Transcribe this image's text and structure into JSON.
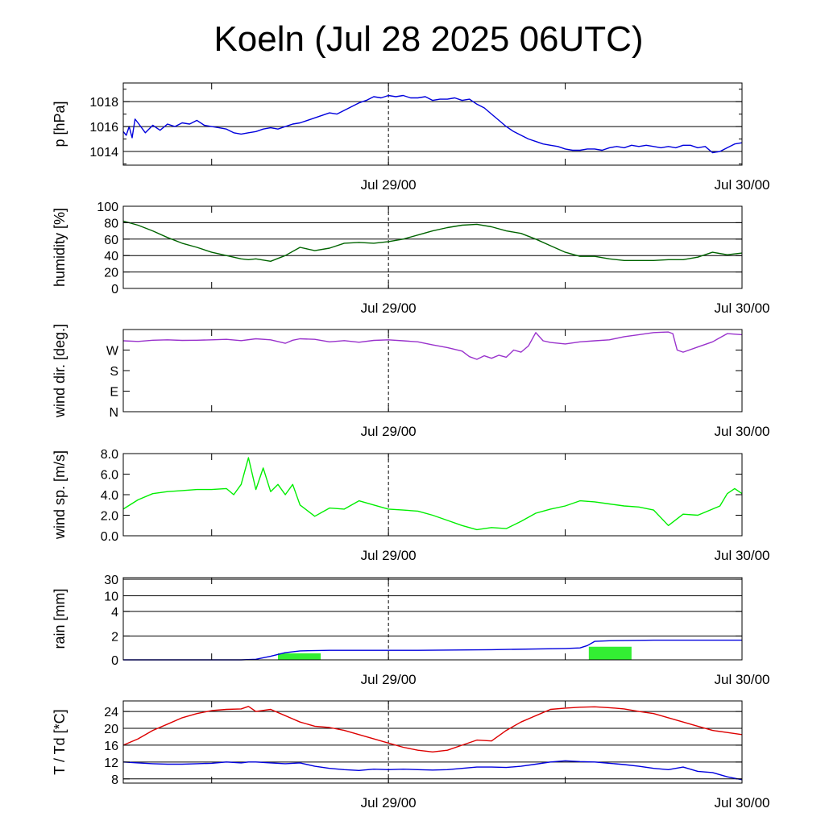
{
  "title": "Koeln (Jul 28 2025 06UTC)",
  "x_tick_labels": [
    "Jul 29/00",
    "Jul 30/00"
  ],
  "chart_data": [
    {
      "type": "line",
      "ylabel": "p [hPa]",
      "ylim": [
        1012.9,
        1019.5
      ],
      "yticks": [
        1014,
        1016,
        1018
      ],
      "ytick_labels": [
        "1014",
        "1016",
        "1018"
      ],
      "gridlines": [
        1014,
        1016,
        1018
      ],
      "x_hours": [
        0,
        0.2,
        0.4,
        0.6,
        0.8,
        1,
        1.5,
        2,
        2.5,
        3,
        3.5,
        4,
        4.5,
        5,
        5.5,
        6,
        6.5,
        7,
        7.5,
        8,
        8.5,
        9,
        9.5,
        10,
        10.5,
        11,
        11.5,
        12,
        12.5,
        13,
        13.5,
        14,
        14.5,
        15,
        15.5,
        16,
        16.5,
        17,
        17.5,
        18,
        18.5,
        19,
        19.5,
        20,
        20.5,
        21,
        21.5,
        22,
        22.5,
        23,
        23.5,
        24,
        24.5,
        25,
        25.5,
        26,
        26.5,
        27,
        27.5,
        28,
        28.5,
        29,
        29.5,
        30,
        30.5,
        31,
        31.5,
        32,
        32.5,
        33,
        33.5,
        34,
        34.5,
        35,
        35.5,
        36,
        36.5,
        37,
        37.5,
        38,
        38.5,
        39,
        39.5,
        40,
        40.5,
        41,
        41.5,
        42
      ],
      "series": [
        {
          "color": "#0000dd",
          "values": [
            1015.6,
            1015.3,
            1016.0,
            1015.1,
            1016.6,
            1016.3,
            1015.5,
            1016.1,
            1015.7,
            1016.2,
            1016.0,
            1016.3,
            1016.2,
            1016.5,
            1016.1,
            1016.0,
            1015.9,
            1015.8,
            1015.5,
            1015.4,
            1015.5,
            1015.6,
            1015.8,
            1015.9,
            1015.8,
            1016.0,
            1016.2,
            1016.3,
            1016.5,
            1016.7,
            1016.9,
            1017.1,
            1017.0,
            1017.3,
            1017.6,
            1017.9,
            1018.1,
            1018.4,
            1018.3,
            1018.5,
            1018.4,
            1018.5,
            1018.3,
            1018.3,
            1018.4,
            1018.1,
            1018.2,
            1018.2,
            1018.3,
            1018.1,
            1018.2,
            1017.8,
            1017.5,
            1017.0,
            1016.5,
            1016.0,
            1015.6,
            1015.3,
            1015.0,
            1014.8,
            1014.6,
            1014.5,
            1014.4,
            1014.2,
            1014.1,
            1014.1,
            1014.2,
            1014.2,
            1014.1,
            1014.3,
            1014.4,
            1014.3,
            1014.5,
            1014.4,
            1014.5,
            1014.4,
            1014.3,
            1014.4,
            1014.3,
            1014.5,
            1014.5,
            1014.3,
            1014.4,
            1013.9,
            1014.0,
            1014.3,
            1014.6,
            1014.7
          ]
        }
      ]
    },
    {
      "type": "line",
      "ylabel": "humidity [%]",
      "ylim": [
        0,
        100
      ],
      "yticks": [
        0,
        20,
        40,
        60,
        80,
        100
      ],
      "ytick_labels": [
        "0",
        "20",
        "40",
        "60",
        "80",
        "100"
      ],
      "gridlines": [
        20,
        40,
        60,
        80
      ],
      "x_hours": [
        0,
        1,
        2,
        3,
        4,
        5,
        6,
        7,
        8,
        8.5,
        9,
        10,
        11,
        12,
        13,
        14,
        15,
        16,
        17,
        18,
        19,
        20,
        21,
        22,
        23,
        24,
        25,
        26,
        27,
        28,
        29,
        30,
        31,
        32,
        33,
        34,
        35,
        36,
        37,
        38,
        39,
        40,
        41,
        42
      ],
      "series": [
        {
          "color": "#006400",
          "values": [
            82,
            77,
            70,
            62,
            55,
            50,
            44,
            40,
            36,
            35,
            36,
            33,
            40,
            50,
            46,
            49,
            55,
            56,
            55,
            57,
            60,
            65,
            70,
            74,
            77,
            78,
            75,
            70,
            67,
            60,
            52,
            44,
            39,
            39,
            36,
            34,
            34,
            34,
            35,
            35,
            38,
            44,
            41,
            43
          ]
        }
      ]
    },
    {
      "type": "line",
      "ylabel": "wind dir. [deg.]",
      "ylim": [
        0,
        400
      ],
      "yticks": [
        0,
        100,
        200,
        300
      ],
      "ytick_labels": [
        "N",
        "E",
        "S",
        "W"
      ],
      "gridlines": [],
      "x_hours": [
        0,
        1,
        2,
        3,
        4,
        5,
        6,
        7,
        8,
        9,
        10,
        11,
        11.5,
        12,
        13,
        14,
        15,
        16,
        17,
        18,
        19,
        20,
        21,
        22,
        23,
        23.5,
        24,
        24.5,
        25,
        25.5,
        26,
        26.5,
        27,
        27.5,
        28,
        28.5,
        29,
        30,
        31,
        32,
        33,
        34,
        35,
        36,
        37,
        37.3,
        37.6,
        38,
        39,
        40,
        41,
        42
      ],
      "series": [
        {
          "color": "#9932cc",
          "values": [
            345,
            342,
            348,
            350,
            347,
            348,
            350,
            352,
            346,
            355,
            350,
            333,
            348,
            355,
            352,
            340,
            346,
            338,
            347,
            350,
            345,
            340,
            325,
            312,
            295,
            268,
            255,
            272,
            260,
            275,
            265,
            300,
            290,
            320,
            385,
            345,
            337,
            330,
            340,
            345,
            350,
            365,
            375,
            385,
            388,
            380,
            300,
            290,
            315,
            340,
            380,
            375
          ]
        }
      ]
    },
    {
      "type": "line",
      "ylabel": "wind sp. [m/s]",
      "ylim": [
        0,
        8
      ],
      "yticks": [
        0,
        2,
        4,
        6,
        8
      ],
      "ytick_labels": [
        "0.0",
        "2.0",
        "4.0",
        "6.0",
        "8.0"
      ],
      "gridlines": [],
      "x_hours": [
        0,
        1,
        2,
        3,
        4,
        5,
        6,
        7,
        7.5,
        8,
        8.5,
        9,
        9.5,
        10,
        10.5,
        11,
        11.5,
        12,
        13,
        14,
        15,
        16,
        17,
        18,
        19,
        20,
        21,
        22,
        23,
        24,
        25,
        26,
        27,
        28,
        29,
        30,
        31,
        32,
        33,
        34,
        35,
        36,
        37,
        38,
        39,
        40,
        40.5,
        41,
        41.5,
        42
      ],
      "series": [
        {
          "color": "#00ee00",
          "values": [
            2.6,
            3.5,
            4.1,
            4.3,
            4.4,
            4.5,
            4.5,
            4.6,
            4.0,
            5.0,
            7.6,
            4.5,
            6.6,
            4.3,
            5.0,
            4.0,
            5.0,
            3.0,
            1.9,
            2.7,
            2.6,
            3.4,
            3.0,
            2.6,
            2.5,
            2.4,
            2.0,
            1.5,
            1.0,
            0.6,
            0.8,
            0.7,
            1.4,
            2.2,
            2.6,
            2.9,
            3.4,
            3.3,
            3.1,
            2.9,
            2.8,
            2.5,
            1.0,
            2.1,
            2.0,
            2.6,
            2.9,
            4.1,
            4.6,
            4.1
          ]
        }
      ]
    },
    {
      "type": "line",
      "ylabel": "rain [mm]",
      "ylim": [
        0,
        30
      ],
      "yticks": [
        0,
        2,
        4,
        10,
        30
      ],
      "ytick_labels": [
        "0",
        "2",
        "4",
        "10",
        "30"
      ],
      "gridlines": [
        2,
        4,
        10,
        30
      ],
      "x_hours": [
        0,
        8,
        9,
        10,
        11,
        12,
        14,
        20,
        25,
        30,
        31,
        31.5,
        32,
        33,
        36,
        42
      ],
      "series": [
        {
          "color": "#0000dd",
          "values": [
            0,
            0,
            0.05,
            0.3,
            0.6,
            0.75,
            0.8,
            0.8,
            0.85,
            0.95,
            1.0,
            1.2,
            1.55,
            1.6,
            1.65,
            1.65
          ]
        }
      ],
      "bars": [
        {
          "x_start": 10.5,
          "x_end": 13.4,
          "value": 0.55,
          "color": "#33ee33"
        },
        {
          "x_start": 31.6,
          "x_end": 34.5,
          "value": 1.1,
          "color": "#33ee33"
        }
      ]
    },
    {
      "type": "line",
      "ylabel": "T / Td [*C]",
      "ylim": [
        7.0,
        26.5
      ],
      "yticks": [
        8,
        12,
        16,
        20,
        24
      ],
      "ytick_labels": [
        "8",
        "12",
        "16",
        "20",
        "24"
      ],
      "gridlines": [
        8,
        12,
        16,
        20,
        24
      ],
      "x_hours": [
        0,
        1,
        2,
        3,
        4,
        5,
        6,
        7,
        8,
        8.5,
        9,
        10,
        11,
        12,
        13,
        14,
        15,
        16,
        17,
        18,
        19,
        20,
        21,
        22,
        23,
        24,
        25,
        26,
        27,
        28,
        29,
        30,
        31,
        32,
        33,
        34,
        35,
        36,
        37,
        38,
        39,
        40,
        41,
        42
      ],
      "series": [
        {
          "color": "#dd0000",
          "values": [
            16.0,
            17.5,
            19.5,
            21.0,
            22.5,
            23.5,
            24.2,
            24.5,
            24.6,
            25.2,
            24.0,
            24.5,
            23.0,
            21.5,
            20.5,
            20.2,
            19.5,
            18.5,
            17.5,
            16.5,
            15.5,
            14.8,
            14.4,
            14.8,
            16.0,
            17.2,
            17.0,
            19.5,
            21.5,
            23.0,
            24.5,
            24.8,
            25.0,
            25.1,
            24.9,
            24.6,
            24.0,
            23.5,
            22.5,
            21.5,
            20.5,
            19.5,
            19.0,
            18.5
          ]
        },
        {
          "color": "#0000dd",
          "values": [
            12.0,
            11.8,
            11.6,
            11.5,
            11.5,
            11.6,
            11.7,
            12.0,
            11.8,
            12.0,
            12.0,
            11.8,
            11.6,
            11.8,
            11.0,
            10.5,
            10.2,
            10.0,
            10.3,
            10.2,
            10.3,
            10.2,
            10.1,
            10.2,
            10.5,
            10.8,
            10.8,
            10.7,
            11.0,
            11.5,
            12.0,
            12.3,
            12.1,
            12.0,
            11.7,
            11.4,
            11.0,
            10.5,
            10.2,
            10.8,
            9.8,
            9.5,
            8.5,
            7.8
          ]
        }
      ]
    }
  ]
}
